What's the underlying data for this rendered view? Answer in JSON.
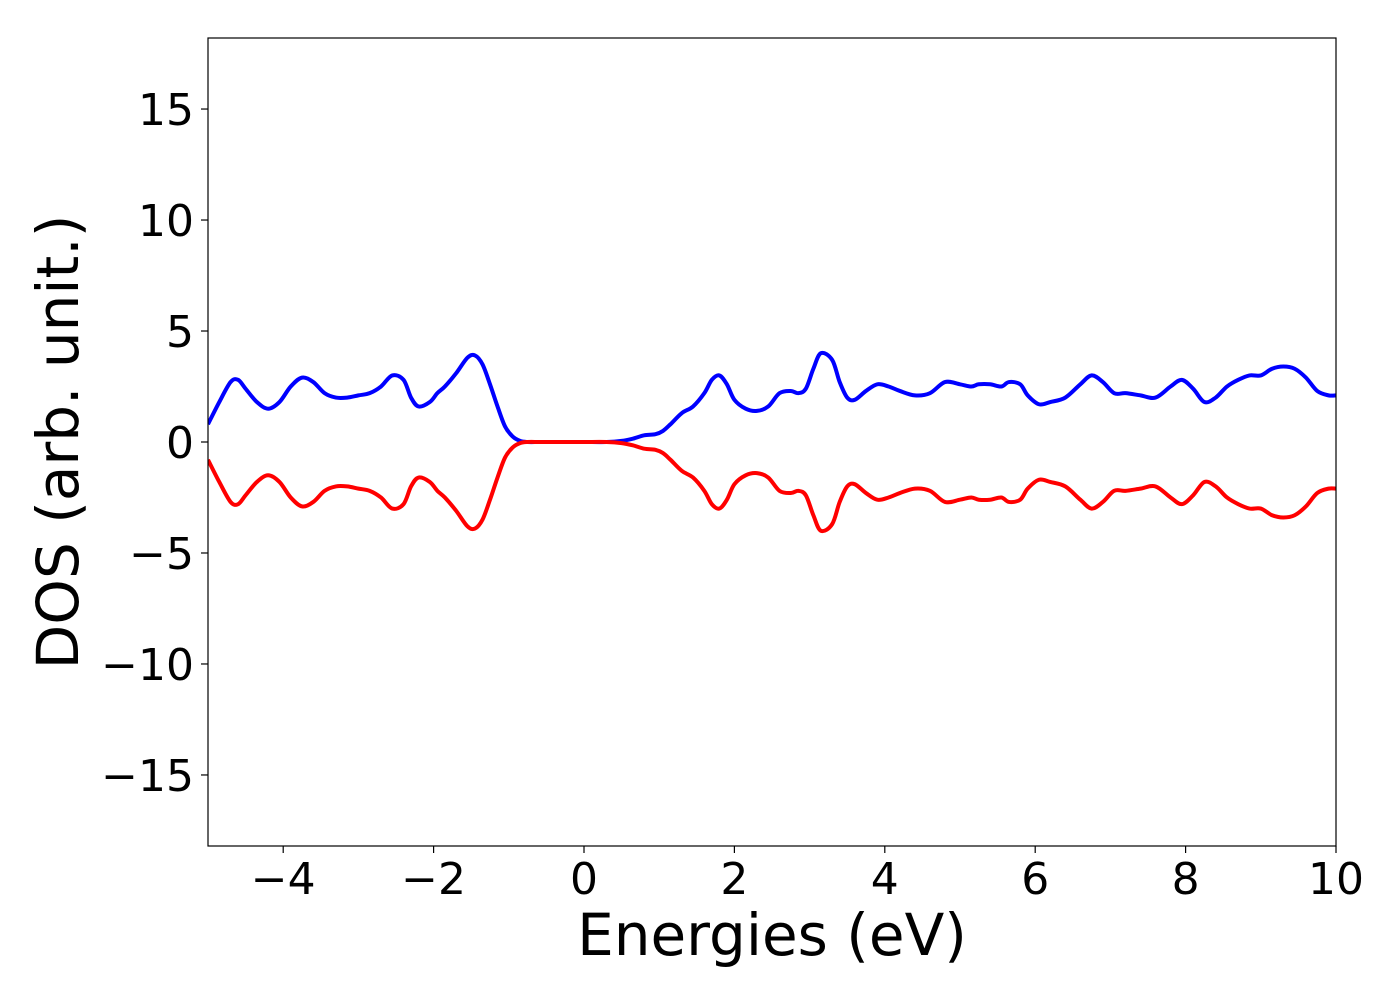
{
  "chart_data": {
    "type": "line",
    "title": "",
    "xlabel": "Energies (eV)",
    "ylabel": "DOS (arb. unit.)",
    "xlim": [
      -5,
      10
    ],
    "ylim": [
      -18.2,
      18.2
    ],
    "x_ticks": [
      -4,
      -2,
      0,
      2,
      4,
      6,
      8,
      10
    ],
    "x_tick_labels": [
      "−4",
      "−2",
      "0",
      "2",
      "4",
      "6",
      "8",
      "10"
    ],
    "y_ticks": [
      -15,
      -10,
      -5,
      0,
      5,
      10,
      15
    ],
    "y_tick_labels": [
      "−15",
      "−10",
      "−5",
      "0",
      "5",
      "10",
      "15"
    ],
    "grid": false,
    "legend": false,
    "series": [
      {
        "color": "#0000ff",
        "x": [
          -5.0,
          -4.85,
          -4.7,
          -4.6,
          -4.5,
          -4.35,
          -4.2,
          -4.05,
          -3.9,
          -3.75,
          -3.6,
          -3.45,
          -3.3,
          -3.15,
          -3.0,
          -2.85,
          -2.7,
          -2.55,
          -2.4,
          -2.3,
          -2.2,
          -2.05,
          -1.95,
          -1.85,
          -1.7,
          -1.55,
          -1.45,
          -1.35,
          -1.25,
          -1.15,
          -1.05,
          -0.95,
          -0.85,
          -0.75,
          -0.6,
          -0.45,
          -0.3,
          0.0,
          0.3,
          0.5,
          0.65,
          0.8,
          0.95,
          1.05,
          1.15,
          1.3,
          1.45,
          1.6,
          1.7,
          1.8,
          1.9,
          2.0,
          2.15,
          2.3,
          2.45,
          2.6,
          2.75,
          2.85,
          2.95,
          3.05,
          3.15,
          3.3,
          3.4,
          3.5,
          3.6,
          3.75,
          3.9,
          4.05,
          4.2,
          4.4,
          4.6,
          4.8,
          5.0,
          5.15,
          5.25,
          5.4,
          5.55,
          5.65,
          5.8,
          5.9,
          6.05,
          6.2,
          6.4,
          6.6,
          6.75,
          6.9,
          7.05,
          7.2,
          7.4,
          7.6,
          7.8,
          7.95,
          8.1,
          8.25,
          8.4,
          8.55,
          8.7,
          8.85,
          9.0,
          9.15,
          9.3,
          9.45,
          9.6,
          9.75,
          9.9,
          10.0
        ],
        "values": [
          0.8,
          1.8,
          2.7,
          2.8,
          2.4,
          1.8,
          1.5,
          1.8,
          2.5,
          2.9,
          2.7,
          2.2,
          2.0,
          2.0,
          2.1,
          2.2,
          2.5,
          3.0,
          2.8,
          2.0,
          1.6,
          1.8,
          2.2,
          2.5,
          3.1,
          3.8,
          3.9,
          3.5,
          2.6,
          1.6,
          0.7,
          0.25,
          0.05,
          0.0,
          0.0,
          0.0,
          0.0,
          0.0,
          0.0,
          0.05,
          0.15,
          0.3,
          0.35,
          0.5,
          0.8,
          1.3,
          1.6,
          2.2,
          2.8,
          3.0,
          2.6,
          1.9,
          1.5,
          1.4,
          1.6,
          2.2,
          2.3,
          2.2,
          2.4,
          3.3,
          4.0,
          3.7,
          2.7,
          2.0,
          1.9,
          2.3,
          2.6,
          2.5,
          2.3,
          2.1,
          2.2,
          2.7,
          2.6,
          2.5,
          2.6,
          2.6,
          2.5,
          2.7,
          2.6,
          2.1,
          1.7,
          1.8,
          2.0,
          2.6,
          3.0,
          2.7,
          2.2,
          2.2,
          2.1,
          2.0,
          2.5,
          2.8,
          2.4,
          1.8,
          2.0,
          2.5,
          2.8,
          3.0,
          3.0,
          3.3,
          3.4,
          3.3,
          2.9,
          2.3,
          2.1,
          2.1
        ]
      },
      {
        "color": "#ff0000",
        "x": [
          -5.0,
          -4.85,
          -4.7,
          -4.6,
          -4.5,
          -4.35,
          -4.2,
          -4.05,
          -3.9,
          -3.75,
          -3.6,
          -3.45,
          -3.3,
          -3.15,
          -3.0,
          -2.85,
          -2.7,
          -2.55,
          -2.4,
          -2.3,
          -2.2,
          -2.05,
          -1.95,
          -1.85,
          -1.7,
          -1.55,
          -1.45,
          -1.35,
          -1.25,
          -1.15,
          -1.05,
          -0.95,
          -0.85,
          -0.75,
          -0.6,
          -0.45,
          -0.3,
          0.0,
          0.3,
          0.5,
          0.65,
          0.8,
          0.95,
          1.05,
          1.15,
          1.3,
          1.45,
          1.6,
          1.7,
          1.8,
          1.9,
          2.0,
          2.15,
          2.3,
          2.45,
          2.6,
          2.75,
          2.85,
          2.95,
          3.05,
          3.15,
          3.3,
          3.4,
          3.5,
          3.6,
          3.75,
          3.9,
          4.05,
          4.2,
          4.4,
          4.6,
          4.8,
          5.0,
          5.15,
          5.25,
          5.4,
          5.55,
          5.65,
          5.8,
          5.9,
          6.05,
          6.2,
          6.4,
          6.6,
          6.75,
          6.9,
          7.05,
          7.2,
          7.4,
          7.6,
          7.8,
          7.95,
          8.1,
          8.25,
          8.4,
          8.55,
          8.7,
          8.85,
          9.0,
          9.15,
          9.3,
          9.45,
          9.6,
          9.75,
          9.9,
          10.0
        ],
        "values": [
          -0.8,
          -1.8,
          -2.7,
          -2.8,
          -2.4,
          -1.8,
          -1.5,
          -1.8,
          -2.5,
          -2.9,
          -2.7,
          -2.2,
          -2.0,
          -2.0,
          -2.1,
          -2.2,
          -2.5,
          -3.0,
          -2.8,
          -2.0,
          -1.6,
          -1.8,
          -2.2,
          -2.5,
          -3.1,
          -3.8,
          -3.9,
          -3.5,
          -2.6,
          -1.6,
          -0.7,
          -0.25,
          -0.05,
          0.0,
          0.0,
          0.0,
          0.0,
          0.0,
          0.0,
          -0.05,
          -0.15,
          -0.3,
          -0.35,
          -0.5,
          -0.8,
          -1.3,
          -1.6,
          -2.2,
          -2.8,
          -3.0,
          -2.6,
          -1.9,
          -1.5,
          -1.4,
          -1.6,
          -2.2,
          -2.3,
          -2.2,
          -2.4,
          -3.3,
          -4.0,
          -3.7,
          -2.7,
          -2.0,
          -1.9,
          -2.3,
          -2.6,
          -2.5,
          -2.3,
          -2.1,
          -2.2,
          -2.7,
          -2.6,
          -2.5,
          -2.6,
          -2.6,
          -2.5,
          -2.7,
          -2.6,
          -2.1,
          -1.7,
          -1.8,
          -2.0,
          -2.6,
          -3.0,
          -2.7,
          -2.2,
          -2.2,
          -2.1,
          -2.0,
          -2.5,
          -2.8,
          -2.4,
          -1.8,
          -2.0,
          -2.5,
          -2.8,
          -3.0,
          -3.0,
          -3.3,
          -3.4,
          -3.3,
          -2.9,
          -2.3,
          -2.1,
          -2.1
        ]
      }
    ]
  }
}
